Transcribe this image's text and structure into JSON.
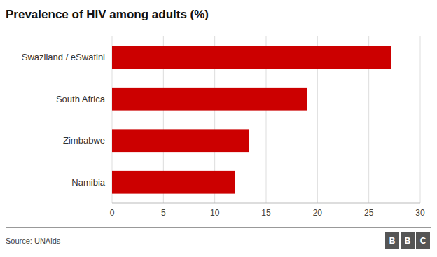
{
  "chart_data": {
    "type": "bar",
    "orientation": "horizontal",
    "title": "Prevalence of HIV among adults (%)",
    "categories": [
      "Namibia",
      "Zimbabwe",
      "South Africa",
      "Swaziland / eSwatini"
    ],
    "values": [
      12.0,
      13.3,
      19.0,
      27.2
    ],
    "color": "#cc0000",
    "xlim": [
      0,
      30
    ],
    "xticks": [
      0,
      5,
      10,
      15,
      20,
      25,
      30
    ],
    "grid": true,
    "source": "Source: UNAids",
    "logo": [
      "B",
      "B",
      "C"
    ]
  }
}
